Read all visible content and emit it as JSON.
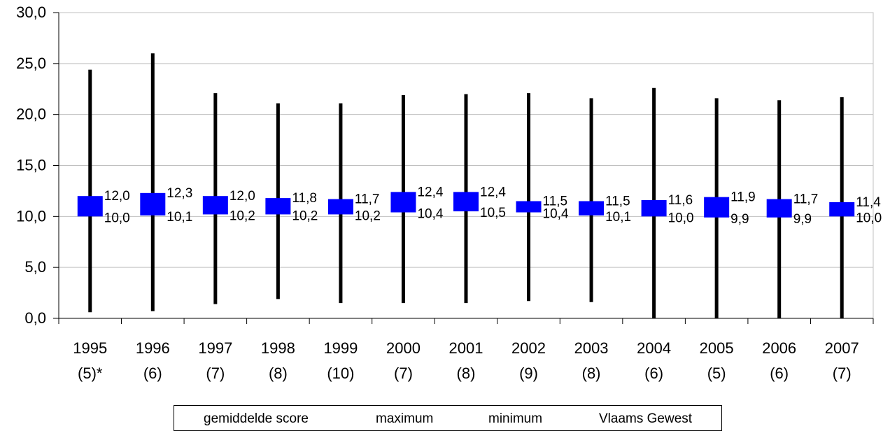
{
  "chart_data": {
    "type": "stock",
    "categories": [
      "1995",
      "1996",
      "1997",
      "1998",
      "1999",
      "2000",
      "2001",
      "2002",
      "2003",
      "2004",
      "2005",
      "2006",
      "2007"
    ],
    "category_counts": [
      "(5)*",
      "(6)",
      "(7)",
      "(8)",
      "(10)",
      "(7)",
      "(8)",
      "(9)",
      "(8)",
      "(6)",
      "(5)",
      "(6)",
      "(7)"
    ],
    "series": [
      {
        "name": "maximum",
        "values": [
          24.4,
          26.0,
          22.1,
          21.1,
          21.1,
          21.9,
          22.0,
          22.1,
          21.6,
          22.6,
          21.6,
          21.4,
          21.7
        ]
      },
      {
        "name": "minimum",
        "values": [
          0.6,
          0.7,
          1.4,
          1.9,
          1.5,
          1.5,
          1.5,
          1.7,
          1.6,
          0.0,
          0.0,
          0.0,
          0.0
        ]
      },
      {
        "name": "gemiddelde score",
        "values": [
          12.0,
          12.3,
          12.0,
          11.8,
          11.7,
          12.4,
          12.4,
          11.5,
          11.5,
          11.6,
          11.9,
          11.7,
          11.4
        ]
      },
      {
        "name": "Vlaams Gewest",
        "values": [
          10.0,
          10.1,
          10.2,
          10.2,
          10.2,
          10.4,
          10.5,
          10.4,
          10.1,
          10.0,
          9.9,
          9.9,
          10.0
        ]
      }
    ],
    "value_labels_top": [
      "12,0",
      "12,3",
      "12,0",
      "11,8",
      "11,7",
      "12,4",
      "12,4",
      "11,5",
      "11,5",
      "11,6",
      "11,9",
      "11,7",
      "11,4"
    ],
    "value_labels_bottom": [
      "10,0",
      "10,1",
      "10,2",
      "10,2",
      "10,2",
      "10,4",
      "10,5",
      "10,4",
      "10,1",
      "10,0",
      "9,9",
      "9,9",
      "10,0"
    ],
    "ylim": [
      0,
      30
    ],
    "yticks": [
      0,
      5,
      10,
      15,
      20,
      25,
      30
    ],
    "ytick_labels": [
      "0,0",
      "5,0",
      "10,0",
      "15,0",
      "20,0",
      "25,0",
      "30,0"
    ],
    "grid": true,
    "colors": {
      "box": "#0000ff",
      "whisker": "#000000",
      "grid": "#c0c0c0"
    }
  },
  "legend": {
    "items": [
      "gemiddelde score",
      "maximum",
      "minimum",
      "Vlaams Gewest"
    ]
  }
}
